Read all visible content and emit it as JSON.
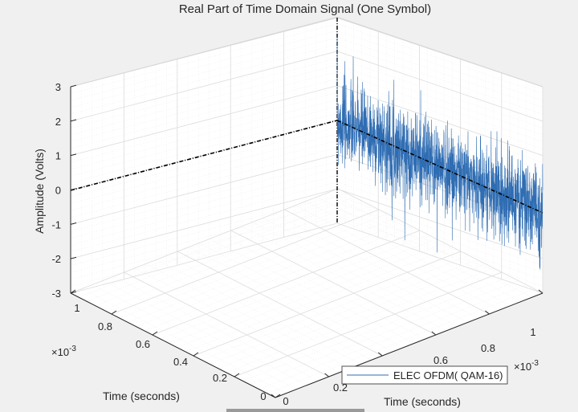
{
  "chart_data": {
    "type": "line",
    "view": "3d",
    "title": "Real Part of Time Domain Signal (One Symbol)",
    "zlabel": "Amplitude (Volts)",
    "xlabel": "Time (seconds)",
    "ylabel": "Time (seconds)",
    "x_exponent_label": "×10",
    "x_exponent_power": "-3",
    "y_exponent_label": "×10",
    "y_exponent_power": "-3",
    "zlim": [
      -3,
      3
    ],
    "z_ticks": [
      "3",
      "2",
      "1",
      "0",
      "-1",
      "-2",
      "-3"
    ],
    "x_ticks": [
      "0",
      "0.2",
      "0.4",
      "0.6",
      "0.8",
      "1"
    ],
    "y_ticks": [
      "0",
      "0.2",
      "0.4",
      "0.6",
      "0.8",
      "1"
    ],
    "grid": true,
    "minor_grid": true,
    "legend": {
      "position": "bottom-right",
      "entries": [
        "ELEC OFDM( QAM-16)"
      ]
    },
    "series": [
      {
        "name": "ELEC OFDM( QAM-16)",
        "color": "#2f6db3",
        "n_samples": 1600,
        "mean": 0,
        "std": 0.5
      }
    ],
    "reference_line_color": "#000000"
  }
}
